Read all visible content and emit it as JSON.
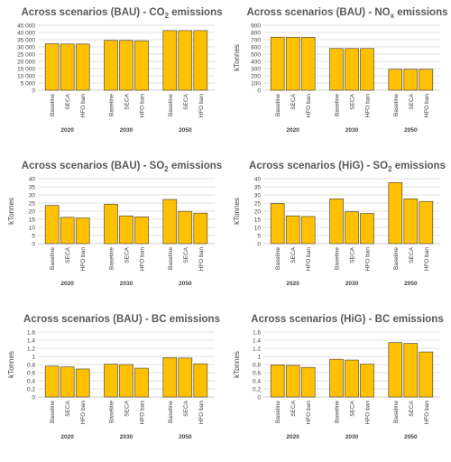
{
  "chart_data": [
    {
      "type": "bar",
      "title_main": "Across scenarios (BAU) - CO",
      "title_sub": "2",
      "title_tail": " emissions",
      "ylabel": "",
      "ylim": [
        0,
        45000
      ],
      "yticks": [
        "0",
        "5 000",
        "10 000",
        "15 000",
        "20 000",
        "25 000",
        "30 000",
        "35 000",
        "40 000",
        "45 000"
      ],
      "groups": [
        "2020",
        "2030",
        "2050"
      ],
      "categories": [
        "Baseline",
        "SECA",
        "HFO ban"
      ],
      "values": [
        [
          32200,
          32000,
          32000
        ],
        [
          34500,
          34500,
          34300
        ],
        [
          41300,
          41300,
          41300
        ]
      ],
      "grid": true
    },
    {
      "type": "bar",
      "title_main": "Across scenarios (BAU) - NO",
      "title_sub": "x",
      "title_tail": " emissions",
      "ylabel": "kTonnes",
      "ylim": [
        0,
        900
      ],
      "yticks": [
        "0",
        "100",
        "200",
        "300",
        "400",
        "500",
        "600",
        "700",
        "800",
        "900"
      ],
      "groups": [
        "2020",
        "2030",
        "2050"
      ],
      "categories": [
        "Baseline",
        "SECA",
        "HFO ban"
      ],
      "values": [
        [
          735,
          733,
          733
        ],
        [
          578,
          578,
          578
        ],
        [
          290,
          290,
          290
        ]
      ],
      "grid": true
    },
    {
      "type": "bar",
      "title_main": "Across scenarios (BAU) - SO",
      "title_sub": "2",
      "title_tail": " emissions",
      "ylabel": "kTonnes",
      "ylim": [
        0,
        40
      ],
      "yticks": [
        "0",
        "5",
        "10",
        "15",
        "20",
        "25",
        "30",
        "35",
        "40"
      ],
      "groups": [
        "2020",
        "2030",
        "2050"
      ],
      "categories": [
        "Baseline",
        "SECA",
        "HFO ban"
      ],
      "values": [
        [
          23.5,
          16.2,
          15.8
        ],
        [
          24.3,
          17.1,
          16.5
        ],
        [
          27.2,
          19.9,
          18.8
        ]
      ],
      "grid": true
    },
    {
      "type": "bar",
      "title_main": "Across scenarios (HiG) - SO",
      "title_sub": "2",
      "title_tail": " emissions",
      "ylabel": "kTonnes",
      "ylim": [
        0,
        40
      ],
      "yticks": [
        "0",
        "5",
        "10",
        "15",
        "20",
        "25",
        "30",
        "35",
        "40"
      ],
      "groups": [
        "2020",
        "2030",
        "2050"
      ],
      "categories": [
        "Baseline",
        "SECA",
        "HFO ban"
      ],
      "values": [
        [
          24.7,
          17.1,
          16.7
        ],
        [
          27.6,
          19.6,
          18.6
        ],
        [
          37.6,
          27.6,
          26.0
        ]
      ],
      "grid": true
    },
    {
      "type": "bar",
      "title_main": "Across scenarios (BAU) - BC emissions",
      "title_sub": "",
      "title_tail": "",
      "ylabel": "kTonnes",
      "ylim": [
        0,
        1.6
      ],
      "yticks": [
        "0",
        "0.2",
        "0.4",
        "0.6",
        "0.8",
        "1",
        "1.2",
        "1.4",
        "1.6"
      ],
      "groups": [
        "2020",
        "2030",
        "2050"
      ],
      "categories": [
        "Baseline",
        "SECA",
        "HFO ban"
      ],
      "values": [
        [
          0.76,
          0.74,
          0.69
        ],
        [
          0.81,
          0.8,
          0.71
        ],
        [
          0.97,
          0.96,
          0.82
        ]
      ],
      "grid": true
    },
    {
      "type": "bar",
      "title_main": "Across scenarios (HiG) - BC emissions",
      "title_sub": "",
      "title_tail": "",
      "ylabel": "kTonnes",
      "ylim": [
        0,
        1.6
      ],
      "yticks": [
        "0",
        "0.2",
        "0.4",
        "0.6",
        "0.8",
        "1",
        "1.2",
        "1.4",
        "1.6"
      ],
      "groups": [
        "2020",
        "2030",
        "2050"
      ],
      "categories": [
        "Baseline",
        "SECA",
        "HFO ban"
      ],
      "values": [
        [
          0.79,
          0.78,
          0.73
        ],
        [
          0.93,
          0.91,
          0.81
        ],
        [
          1.34,
          1.32,
          1.11
        ]
      ],
      "grid": true
    }
  ],
  "colors": {
    "bar_fill": "#FFC000",
    "bar_stroke": "#3a3a3a",
    "grid": "#d9d9d9",
    "axis": "#bfbfbf"
  }
}
